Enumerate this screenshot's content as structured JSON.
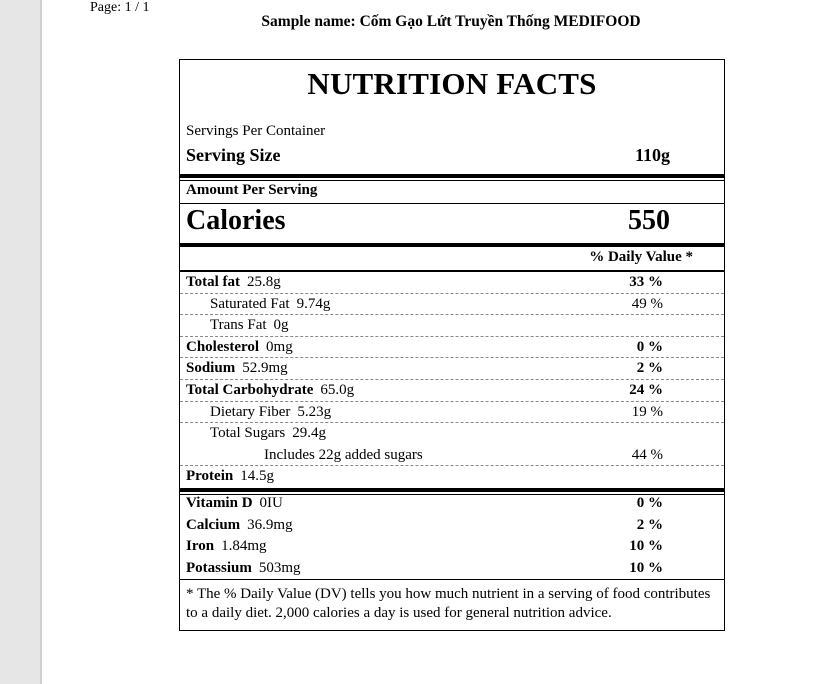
{
  "page_indicator": "Page: 1 / 1",
  "sample_name": "Sample name: Cốm Gạo Lứt Truyền Thống MEDIFOOD",
  "label": {
    "title": "NUTRITION FACTS",
    "servings_per_container": "Servings Per Container",
    "serving_size_label": "Serving Size",
    "serving_size_value": "110g",
    "amount_per_serving": "Amount Per Serving",
    "calories_label": "Calories",
    "calories_value": "550",
    "daily_value_header": "% Daily Value *",
    "nutrients": [
      {
        "name": "Total fat",
        "amount": "25.8g",
        "dv": "33 %"
      },
      {
        "name": "Saturated Fat",
        "amount": "9.74g",
        "dv": "49 %"
      },
      {
        "name": "Trans Fat",
        "amount": "0g",
        "dv": ""
      },
      {
        "name": "Cholesterol",
        "amount": "0mg",
        "dv": "0 %"
      },
      {
        "name": "Sodium",
        "amount": "52.9mg",
        "dv": "2 %"
      },
      {
        "name": "Total Carbohydrate",
        "amount": "65.0g",
        "dv": "24 %"
      },
      {
        "name": "Dietary Fiber",
        "amount": "5.23g",
        "dv": "19 %"
      },
      {
        "name": "Total Sugars",
        "amount": "29.4g",
        "dv": ""
      },
      {
        "name": "Includes 22g added sugars",
        "amount": "",
        "dv": "44 %"
      },
      {
        "name": "Protein",
        "amount": "14.5g",
        "dv": ""
      }
    ],
    "vitamins": [
      {
        "name": "Vitamin D",
        "amount": "0IU",
        "dv": "0 %"
      },
      {
        "name": "Calcium",
        "amount": "36.9mg",
        "dv": "2 %"
      },
      {
        "name": "Iron",
        "amount": "1.84mg",
        "dv": "10 %"
      },
      {
        "name": "Potassium",
        "amount": "503mg",
        "dv": "10 %"
      }
    ],
    "footnote": "* The % Daily Value (DV) tells you how much nutrient in a serving of food contributes to a daily diet. 2,000 calories a day is used for general nutrition advice."
  }
}
